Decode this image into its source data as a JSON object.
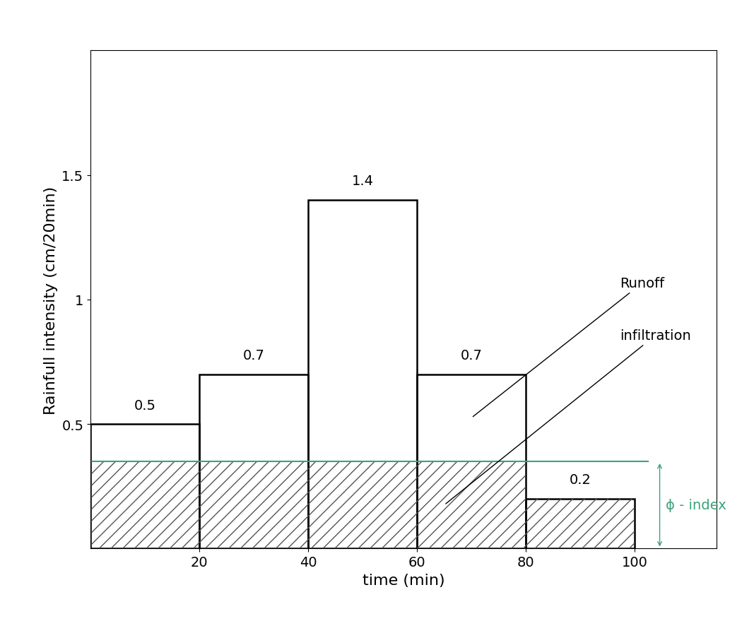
{
  "chart_data": {
    "type": "bar",
    "x_label": "time (min)",
    "y_label": "Rainfull intensity (cm/20min)",
    "bins": [
      0,
      20,
      40,
      60,
      80,
      100
    ],
    "values": [
      0.5,
      0.7,
      1.4,
      0.7,
      0.2
    ],
    "data_labels": true,
    "color": "#000000",
    "phi_index": 0.35,
    "phi_color": "#3aa37a",
    "annotations": {
      "runoff": "Runoff",
      "infiltration": "infiltration",
      "phi": "ϕ - index"
    },
    "xlim": [
      0,
      115
    ],
    "ylim": [
      0,
      2
    ],
    "xticks": [
      20,
      40,
      60,
      80,
      100
    ],
    "yticks": [
      0.5,
      1,
      1.5
    ],
    "grid": false
  }
}
